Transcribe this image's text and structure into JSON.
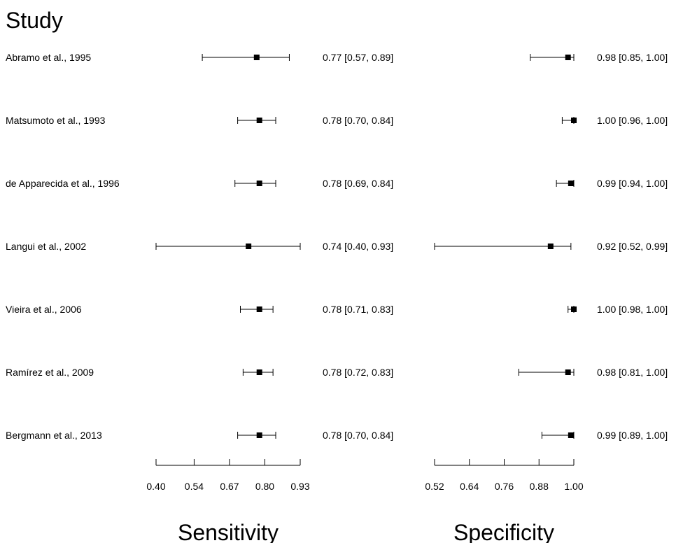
{
  "heading": "Study",
  "chart_data": [
    {
      "type": "forest",
      "xlabel": "Sensitivity",
      "xticks": [
        0.4,
        0.54,
        0.67,
        0.8,
        0.93
      ],
      "xtick_labels": [
        "0.40",
        "0.54",
        "0.67",
        "0.80",
        "0.93"
      ],
      "xlim": [
        0.4,
        0.93
      ],
      "studies": [
        "Abramo et al., 1995",
        "Matsumoto et al., 1993",
        "de Apparecida et al., 1996",
        "Langui et al., 2002",
        "Vieira et al., 2006",
        "Ramírez et al., 2009",
        "Bergmann et al., 2013"
      ],
      "estimate": [
        0.77,
        0.78,
        0.78,
        0.74,
        0.78,
        0.78,
        0.78
      ],
      "lower": [
        0.57,
        0.7,
        0.69,
        0.4,
        0.71,
        0.72,
        0.7
      ],
      "upper": [
        0.89,
        0.84,
        0.84,
        0.93,
        0.83,
        0.83,
        0.84
      ],
      "labels": [
        "0.77 [0.57, 0.89]",
        "0.78 [0.70, 0.84]",
        "0.78 [0.69, 0.84]",
        "0.74 [0.40, 0.93]",
        "0.78 [0.71, 0.83]",
        "0.78 [0.72, 0.83]",
        "0.78 [0.70, 0.84]"
      ]
    },
    {
      "type": "forest",
      "xlabel": "Specificity",
      "xticks": [
        0.52,
        0.64,
        0.76,
        0.88,
        1.0
      ],
      "xtick_labels": [
        "0.52",
        "0.64",
        "0.76",
        "0.88",
        "1.00"
      ],
      "xlim": [
        0.52,
        1.0
      ],
      "studies": [
        "Abramo et al., 1995",
        "Matsumoto et al., 1993",
        "de Apparecida et al., 1996",
        "Langui et al., 2002",
        "Vieira et al., 2006",
        "Ramírez et al., 2009",
        "Bergmann et al., 2013"
      ],
      "estimate": [
        0.98,
        1.0,
        0.99,
        0.92,
        1.0,
        0.98,
        0.99
      ],
      "lower": [
        0.85,
        0.96,
        0.94,
        0.52,
        0.98,
        0.81,
        0.89
      ],
      "upper": [
        1.0,
        1.0,
        1.0,
        0.99,
        1.0,
        1.0,
        1.0
      ],
      "labels": [
        "0.98 [0.85, 1.00]",
        "1.00 [0.96, 1.00]",
        "0.99 [0.94, 1.00]",
        "0.92 [0.52, 0.99]",
        "1.00 [0.98, 1.00]",
        "0.98 [0.81, 1.00]",
        "0.99 [0.89, 1.00]"
      ]
    }
  ]
}
